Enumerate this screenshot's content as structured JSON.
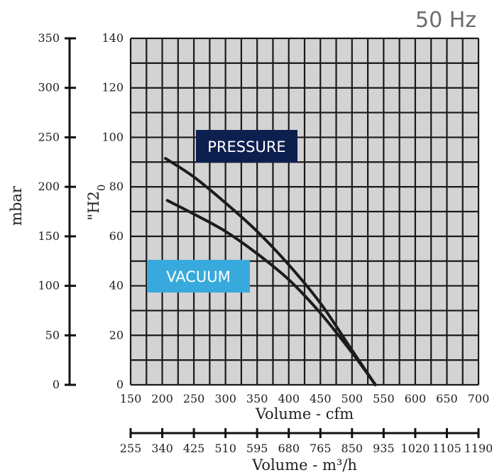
{
  "frequency_label": "50 Hz",
  "chart_data": {
    "type": "line",
    "x_label": "Volume - cfm",
    "x_secondary_label": "Volume - m³/h",
    "y_label": "\"H20",
    "y_secondary_label": "mbar",
    "xlim": [
      150,
      700
    ],
    "ylim": [
      0,
      140
    ],
    "y_secondary_lim": [
      0,
      350
    ],
    "x_ticks": [
      150,
      200,
      250,
      300,
      350,
      400,
      450,
      500,
      550,
      600,
      650,
      700
    ],
    "x_secondary_ticks": [
      "255",
      "340",
      "425",
      "510",
      "595",
      "680",
      "765",
      "850",
      "935",
      "1020",
      "1105",
      "1190"
    ],
    "y_ticks": [
      0,
      20,
      40,
      60,
      80,
      100,
      120,
      140
    ],
    "y_secondary_ticks": [
      0,
      50,
      100,
      150,
      200,
      250,
      300,
      350
    ],
    "grid": true,
    "series": [
      {
        "name": "PRESSURE",
        "label_color": "#0d1f4f",
        "x": [
          205,
          250,
          300,
          350,
          400,
          450,
          500,
          537
        ],
        "y": [
          91.5,
          84,
          73.5,
          62,
          48.5,
          33,
          14,
          0
        ]
      },
      {
        "name": "VACUUM",
        "label_color": "#38a9dc",
        "x": [
          208,
          250,
          300,
          350,
          400,
          450,
          500,
          537
        ],
        "y": [
          74.5,
          69,
          62,
          53,
          42.5,
          29,
          13,
          0
        ]
      }
    ]
  }
}
